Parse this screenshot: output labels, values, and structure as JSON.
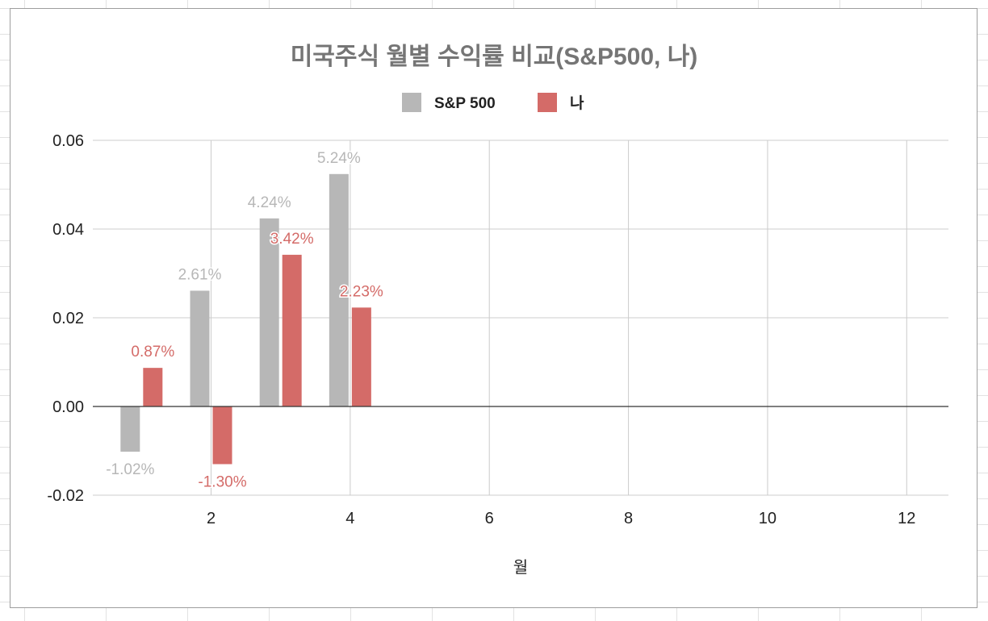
{
  "chart_data": {
    "type": "bar",
    "title": "미국주식 월별 수익률 비교(S&P500, 나)",
    "xlabel": "월",
    "ylabel": "",
    "xlim": [
      0.3,
      12.6
    ],
    "ylim": [
      -0.02,
      0.06
    ],
    "x_ticks": [
      2,
      4,
      6,
      8,
      10,
      12
    ],
    "y_ticks": [
      -0.02,
      0.0,
      0.02,
      0.04,
      0.06
    ],
    "y_tick_labels": [
      "-0.02",
      "0.00",
      "0.02",
      "0.04",
      "0.06"
    ],
    "grid": true,
    "legend_position": "top",
    "categories": [
      1,
      2,
      3,
      4
    ],
    "series": [
      {
        "name": "S&P 500",
        "color": "#b7b7b7",
        "label_color": "#b7b7b7",
        "values": [
          -0.0102,
          0.0261,
          0.0424,
          0.0524
        ],
        "labels": [
          "-1.02%",
          "2.61%",
          "4.24%",
          "5.24%"
        ]
      },
      {
        "name": "나",
        "color": "#d46b68",
        "label_color": "#d46b68",
        "values": [
          0.0087,
          -0.013,
          0.0342,
          0.0223
        ],
        "labels": [
          "0.87%",
          "-1.30%",
          "3.42%",
          "2.23%"
        ]
      }
    ]
  }
}
